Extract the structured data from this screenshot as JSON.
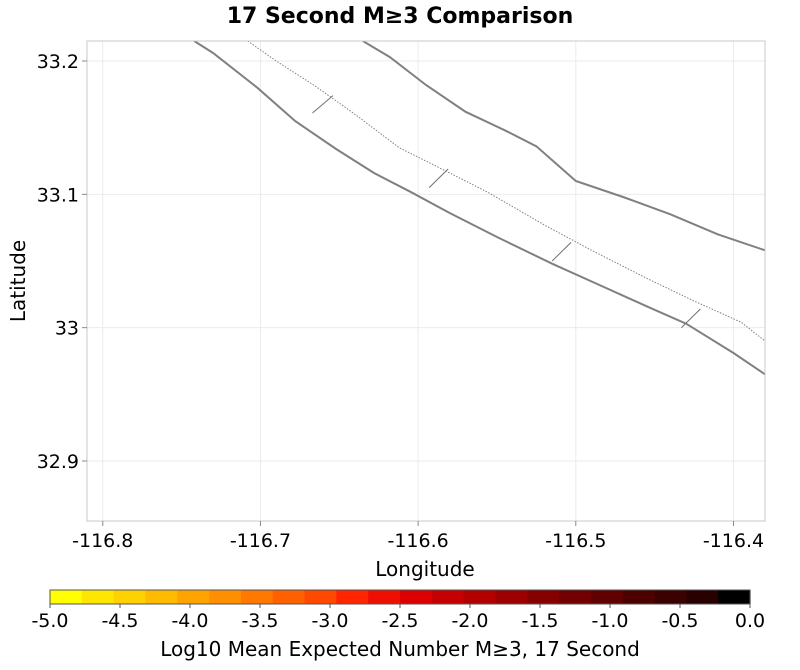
{
  "chart_data": {
    "type": "map",
    "title": "17 Second M≥3 Comparison",
    "xlabel": "Longitude",
    "ylabel": "Latitude",
    "xlim": [
      -116.81,
      -116.38
    ],
    "ylim": [
      32.855,
      33.215
    ],
    "x_ticks": [
      -116.8,
      -116.7,
      -116.6,
      -116.5,
      -116.4
    ],
    "x_tick_labels": [
      "-116.8",
      "-116.7",
      "-116.6",
      "-116.5",
      "-116.4"
    ],
    "y_ticks": [
      32.9,
      33.0,
      33.1,
      33.2
    ],
    "y_tick_labels": [
      "32.9",
      "33",
      "33.1",
      "33.2"
    ],
    "grid": true,
    "polylines": [
      {
        "name": "",
        "style": "solid",
        "color": "#808080",
        "points": [
          [
            -116.742,
            33.215
          ],
          [
            -116.73,
            33.206
          ],
          [
            -116.702,
            33.18
          ],
          [
            -116.678,
            33.155
          ],
          [
            -116.652,
            33.134
          ],
          [
            -116.628,
            33.116
          ],
          [
            -116.605,
            33.102
          ],
          [
            -116.58,
            33.086
          ],
          [
            -116.55,
            33.068
          ],
          [
            -116.515,
            33.048
          ],
          [
            -116.485,
            33.032
          ],
          [
            -116.455,
            33.016
          ],
          [
            -116.43,
            33.003
          ],
          [
            -116.4,
            32.981
          ],
          [
            -116.38,
            32.965
          ]
        ]
      },
      {
        "name": "",
        "style": "solid",
        "color": "#808080",
        "points": [
          [
            -116.635,
            33.215
          ],
          [
            -116.618,
            33.203
          ],
          [
            -116.595,
            33.182
          ],
          [
            -116.57,
            33.162
          ],
          [
            -116.545,
            33.148
          ],
          [
            -116.525,
            33.136
          ],
          [
            -116.5,
            33.11
          ],
          [
            -116.47,
            33.098
          ],
          [
            -116.44,
            33.085
          ],
          [
            -116.41,
            33.07
          ],
          [
            -116.38,
            33.058
          ]
        ]
      },
      {
        "name": "",
        "style": "dotted",
        "color": "#808080",
        "points": [
          [
            -116.708,
            33.215
          ],
          [
            -116.69,
            33.2
          ],
          [
            -116.665,
            33.181
          ],
          [
            -116.64,
            33.16
          ],
          [
            -116.612,
            33.135
          ],
          [
            -116.585,
            33.119
          ],
          [
            -116.555,
            33.101
          ],
          [
            -116.52,
            33.077
          ],
          [
            -116.49,
            33.058
          ],
          [
            -116.455,
            33.037
          ],
          [
            -116.425,
            33.02
          ],
          [
            -116.395,
            33.004
          ],
          [
            -116.38,
            32.99
          ]
        ]
      }
    ],
    "connectors": [
      [
        [
          -116.667,
          33.161
        ],
        [
          -116.654,
          33.174
        ]
      ],
      [
        [
          -116.593,
          33.105
        ],
        [
          -116.581,
          33.119
        ]
      ],
      [
        [
          -116.515,
          33.05
        ],
        [
          -116.503,
          33.064
        ]
      ],
      [
        [
          -116.433,
          33.0
        ],
        [
          -116.421,
          33.014
        ]
      ]
    ],
    "colorbar": {
      "label": "Log10 Mean Expected Number M≥3, 17 Second",
      "min": -5.0,
      "max": 0.0,
      "ticks": [
        -5.0,
        -4.5,
        -4.0,
        -3.5,
        -3.0,
        -2.5,
        -2.0,
        -1.5,
        -1.0,
        -0.5,
        0.0
      ],
      "tick_labels": [
        "-5.0",
        "-4.5",
        "-4.0",
        "-3.5",
        "-3.0",
        "-2.5",
        "-2.0",
        "-1.5",
        "-1.0",
        "-0.5",
        "0.0"
      ],
      "colors": [
        "#ffff00",
        "#ffe600",
        "#ffd100",
        "#ffbb00",
        "#ffa300",
        "#ff8f00",
        "#ff7800",
        "#ff6100",
        "#ff4800",
        "#ff2500",
        "#ef0f00",
        "#dc0000",
        "#c60000",
        "#b20000",
        "#9c0000",
        "#870000",
        "#730000",
        "#600000",
        "#4d0000",
        "#3b0000",
        "#280000",
        "#000000"
      ]
    }
  }
}
